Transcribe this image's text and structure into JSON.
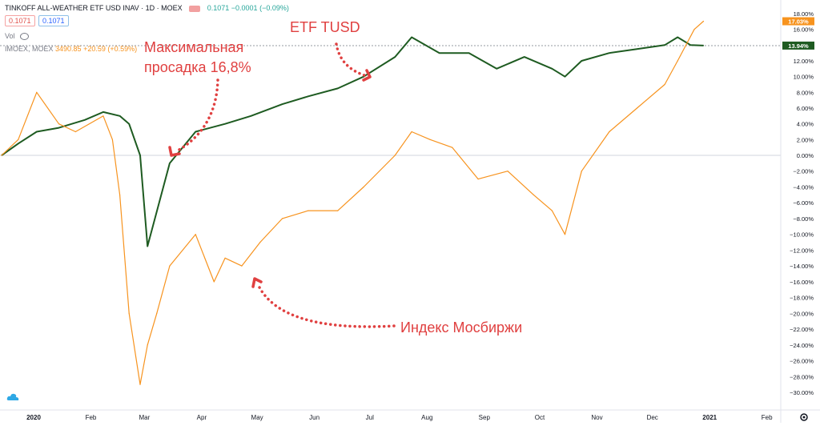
{
  "header": {
    "symbol_line": "TINKOFF ALL-WEATHER ETF USD INAV · 1D · MOEX",
    "quote": "0.1071",
    "change": "−0.0001",
    "change_pct": "(−0.09%)",
    "box1": "0.1071",
    "box2": "0.1071",
    "vol_label": "Vol",
    "moex_line_name": "IMOEX, MOEX",
    "moex_line_value": "3490.85",
    "moex_line_change": "+20.59 (+0.59%)"
  },
  "colors": {
    "etf": "#1e5b21",
    "moex": "#f7931e",
    "annotation": "#e04040"
  },
  "chart_data": {
    "type": "line",
    "title": "",
    "xlabel": "",
    "ylabel": "",
    "ylim": [
      -31,
      18
    ],
    "x_ticks": [
      "2020",
      "Feb",
      "Mar",
      "Apr",
      "May",
      "Jun",
      "Jul",
      "Aug",
      "Sep",
      "Oct",
      "Nov",
      "Dec",
      "2021",
      "Feb"
    ],
    "y_ticks": [
      18,
      16,
      14,
      12,
      10,
      8,
      6,
      4,
      2,
      0,
      -2,
      -4,
      -6,
      -8,
      -10,
      -12,
      -14,
      -16,
      -18,
      -20,
      -22,
      -24,
      -26,
      -28,
      -30
    ],
    "last_labels": {
      "moex": "17.03%",
      "etf": "13.94%"
    },
    "series": [
      {
        "name": "",
        "key": "etf",
        "x": [
          "2020-01-01",
          "2020-01-10",
          "2020-01-20",
          "2020-02-01",
          "2020-02-15",
          "2020-02-25",
          "2020-03-05",
          "2020-03-10",
          "2020-03-16",
          "2020-03-20",
          "2020-04-01",
          "2020-04-15",
          "2020-05-01",
          "2020-05-15",
          "2020-06-01",
          "2020-06-15",
          "2020-07-01",
          "2020-07-15",
          "2020-08-01",
          "2020-08-10",
          "2020-08-25",
          "2020-09-10",
          "2020-09-25",
          "2020-10-10",
          "2020-10-25",
          "2020-11-01",
          "2020-11-10",
          "2020-11-25",
          "2020-12-10",
          "2020-12-25",
          "2021-01-01",
          "2021-01-08",
          "2021-01-15"
        ],
        "values": [
          0,
          1.5,
          3,
          3.5,
          4.5,
          5.5,
          5,
          4,
          0,
          -11.5,
          -1,
          3,
          4,
          5,
          6.5,
          7.5,
          8.5,
          10,
          12.5,
          15,
          13,
          13,
          11,
          12.5,
          11,
          10,
          12,
          13,
          13.5,
          14,
          15,
          14,
          13.94
        ]
      },
      {
        "name": "",
        "key": "moex",
        "x": [
          "2020-01-01",
          "2020-01-10",
          "2020-01-20",
          "2020-02-01",
          "2020-02-10",
          "2020-02-25",
          "2020-03-01",
          "2020-03-05",
          "2020-03-10",
          "2020-03-16",
          "2020-03-20",
          "2020-03-25",
          "2020-04-01",
          "2020-04-15",
          "2020-04-25",
          "2020-05-01",
          "2020-05-10",
          "2020-05-20",
          "2020-06-01",
          "2020-06-15",
          "2020-07-01",
          "2020-07-15",
          "2020-08-01",
          "2020-08-10",
          "2020-08-20",
          "2020-09-01",
          "2020-09-15",
          "2020-10-01",
          "2020-10-15",
          "2020-10-25",
          "2020-11-01",
          "2020-11-10",
          "2020-11-25",
          "2020-12-10",
          "2020-12-25",
          "2021-01-01",
          "2021-01-10",
          "2021-01-15"
        ],
        "values": [
          0,
          2,
          8,
          4,
          3,
          5,
          2,
          -5,
          -20,
          -29,
          -24,
          -20,
          -14,
          -10,
          -16,
          -13,
          -14,
          -11,
          -8,
          -7,
          -7,
          -4,
          0,
          3,
          2,
          1,
          -3,
          -2,
          -5,
          -7,
          -10,
          -2,
          3,
          6,
          9,
          12,
          16,
          17.03
        ]
      }
    ],
    "annotations": [
      {
        "text": "Максимальная"
      },
      {
        "text": "просадка 16,8%"
      },
      {
        "text": "ETF TUSD"
      },
      {
        "text": "Индекс Мосбиржи"
      }
    ],
    "grid": false,
    "legend": "top-left"
  }
}
